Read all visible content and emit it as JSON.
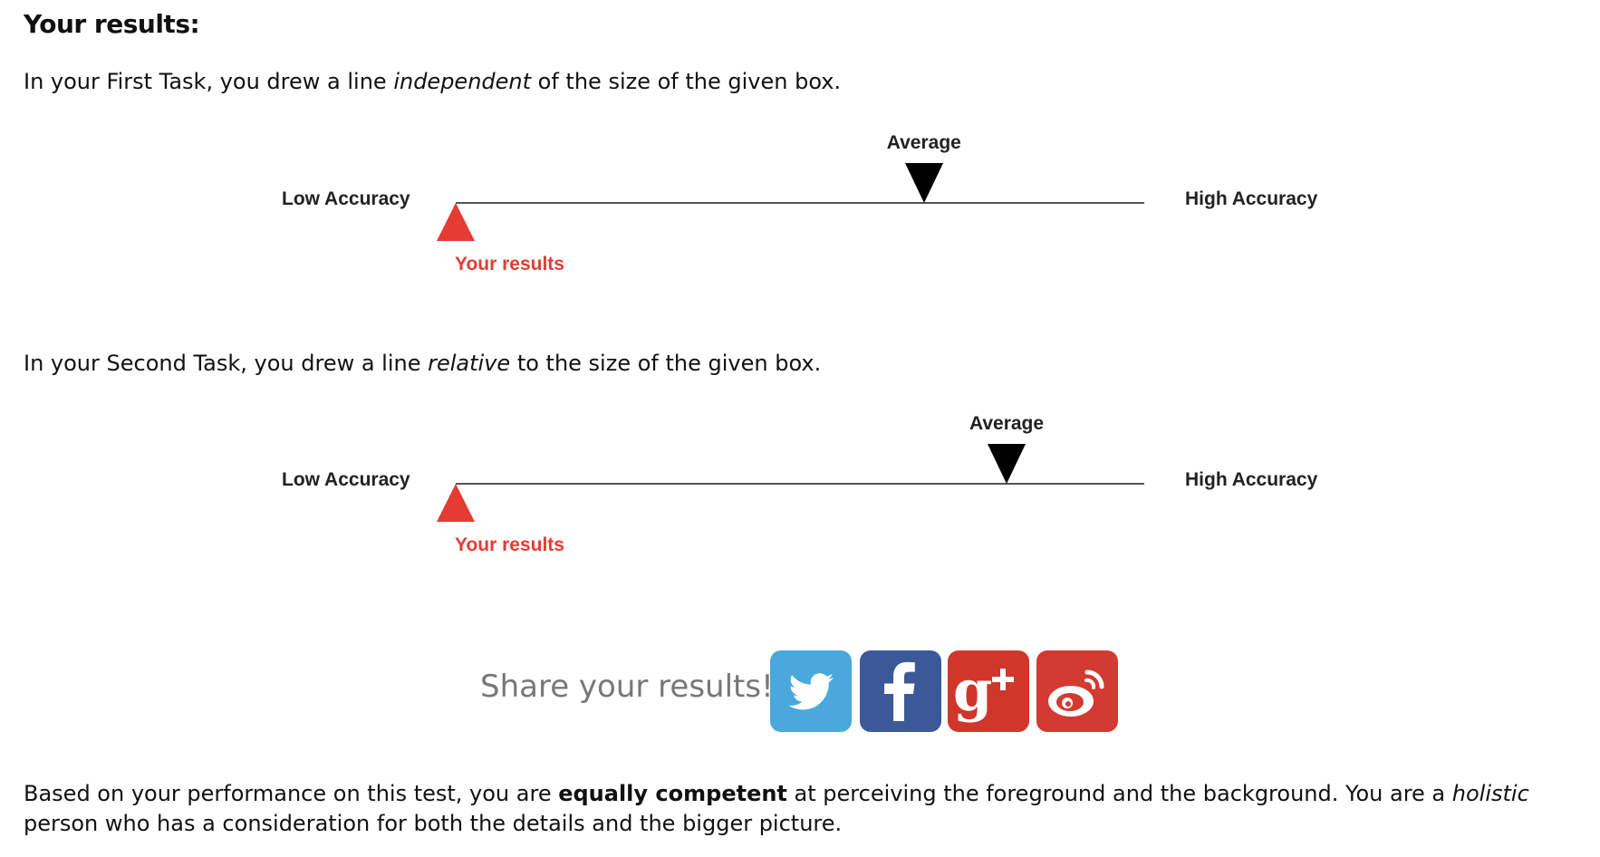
{
  "heading": "Your results:",
  "task1": {
    "pre": "In your First Task, you drew a line ",
    "em": "independent",
    "post": " of the size of the given box."
  },
  "task2": {
    "pre": "In your Second Task, you drew a line ",
    "em": "relative",
    "post": " to the size of the given box."
  },
  "scales": [
    {
      "low_label": "Low Accuracy",
      "high_label": "High Accuracy",
      "average_label": "Average",
      "your_label": "Your results",
      "average_position": 0.68,
      "your_position": 0.0
    },
    {
      "low_label": "Low Accuracy",
      "high_label": "High Accuracy",
      "average_label": "Average",
      "your_label": "Your results",
      "average_position": 0.8,
      "your_position": 0.0
    }
  ],
  "share": {
    "text": "Share your results!",
    "buttons": [
      {
        "name": "twitter",
        "icon": "twitter-bird-icon",
        "color": "#4aa8dd"
      },
      {
        "name": "facebook",
        "icon": "facebook-f-icon",
        "color": "#3b5998"
      },
      {
        "name": "google-plus",
        "icon": "google-plus-icon",
        "color": "#d1362b"
      },
      {
        "name": "weibo",
        "icon": "weibo-eye-icon",
        "color": "#d33a31"
      }
    ]
  },
  "conclusion": {
    "pre": "Based on your performance on this test, you are ",
    "bold": "equally competent",
    "mid": " at perceiving the foreground and the background. You are a ",
    "em": "holistic",
    "post": " person who has a consideration for both the details and the bigger picture."
  },
  "colors": {
    "your_marker": "#e63b33",
    "average_marker": "#000000",
    "share_text": "#777777"
  }
}
